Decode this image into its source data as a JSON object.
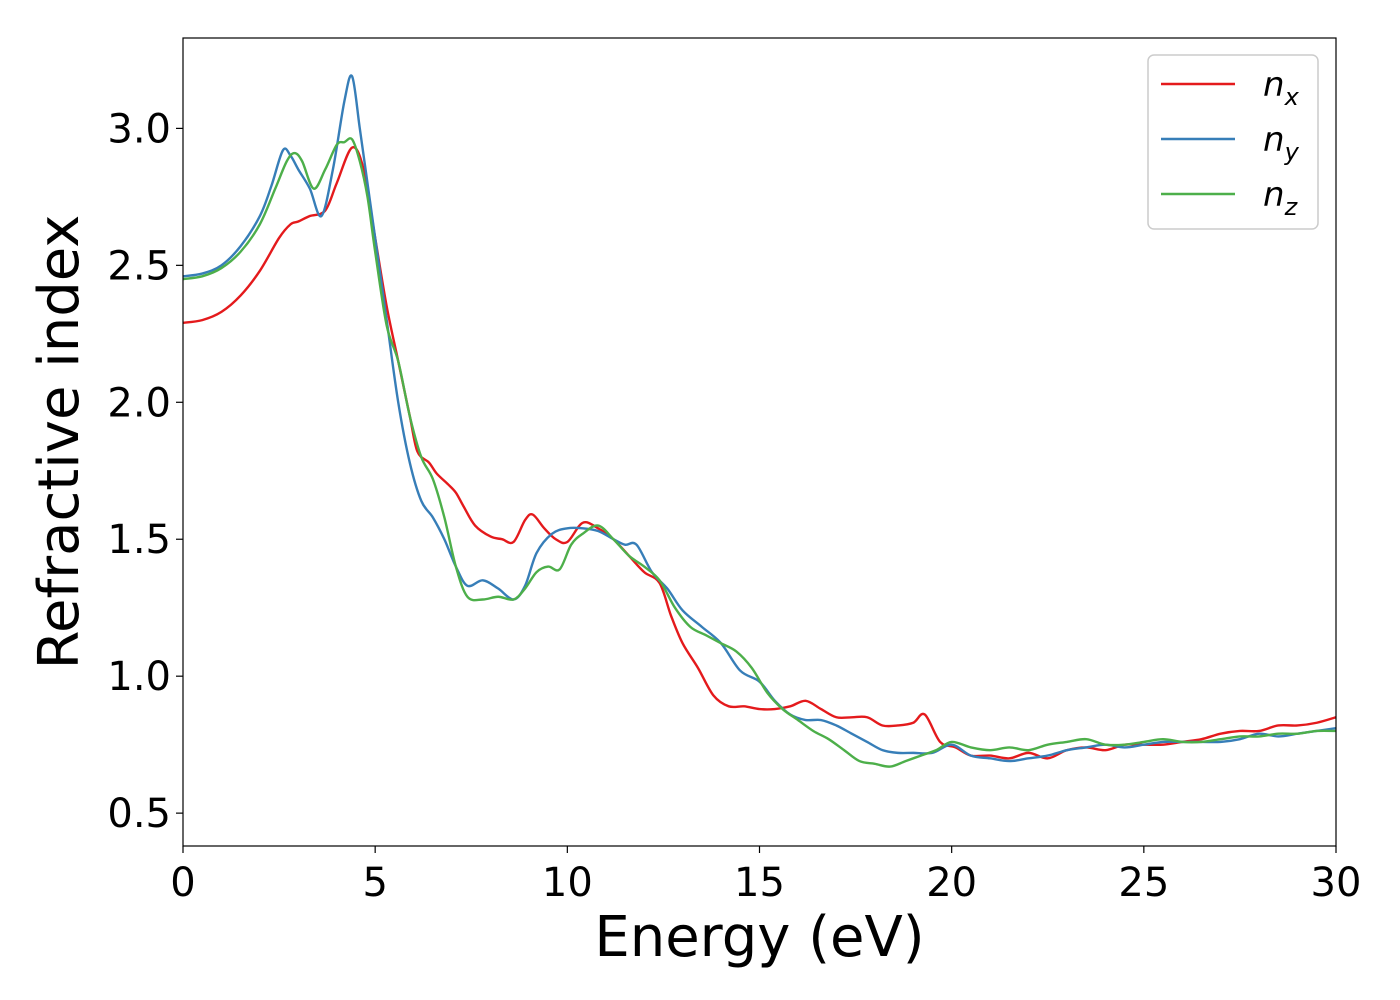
{
  "chart_data": {
    "type": "line",
    "xlabel": "Energy (eV)",
    "ylabel": "Refractive index",
    "xlim": [
      0,
      30
    ],
    "ylim": [
      0.38,
      3.33
    ],
    "xticks": [
      0,
      5,
      10,
      15,
      20,
      25,
      30
    ],
    "xtick_labels": [
      "0",
      "5",
      "10",
      "15",
      "20",
      "25",
      "30"
    ],
    "yticks": [
      0.5,
      1.0,
      1.5,
      2.0,
      2.5,
      3.0
    ],
    "ytick_labels": [
      "0.5",
      "1.0",
      "1.5",
      "2.0",
      "2.5",
      "3.0"
    ],
    "grid": false,
    "legend_position": "top-right",
    "series": [
      {
        "name": "n_x",
        "legend_base": "n",
        "legend_sub": "x",
        "color": "#e41a1c",
        "x": [
          0,
          0.5,
          1,
          1.5,
          2,
          2.5,
          2.8,
          3.0,
          3.3,
          3.7,
          4.0,
          4.4,
          4.7,
          5.0,
          5.3,
          5.6,
          5.9,
          6.1,
          6.4,
          6.6,
          6.9,
          7.1,
          7.3,
          7.6,
          8.0,
          8.3,
          8.6,
          8.9,
          9.1,
          9.4,
          9.7,
          10.0,
          10.4,
          10.8,
          11.2,
          11.6,
          12.0,
          12.4,
          12.7,
          13.0,
          13.4,
          13.8,
          14.2,
          14.6,
          15.0,
          15.4,
          15.8,
          16.2,
          16.6,
          17.0,
          17.4,
          17.8,
          18.2,
          18.6,
          19.0,
          19.3,
          19.7,
          20.1,
          20.5,
          21.0,
          21.5,
          22.0,
          22.5,
          23.0,
          23.5,
          24.0,
          24.5,
          25.0,
          25.5,
          26.0,
          26.5,
          27.0,
          27.5,
          28.0,
          28.5,
          29.0,
          29.5,
          30.0
        ],
        "y": [
          2.29,
          2.3,
          2.33,
          2.39,
          2.48,
          2.6,
          2.65,
          2.66,
          2.68,
          2.7,
          2.8,
          2.93,
          2.85,
          2.6,
          2.35,
          2.15,
          1.95,
          1.82,
          1.78,
          1.74,
          1.7,
          1.67,
          1.62,
          1.55,
          1.51,
          1.5,
          1.49,
          1.57,
          1.59,
          1.54,
          1.5,
          1.49,
          1.56,
          1.54,
          1.5,
          1.44,
          1.38,
          1.34,
          1.22,
          1.12,
          1.03,
          0.93,
          0.89,
          0.89,
          0.88,
          0.88,
          0.89,
          0.91,
          0.88,
          0.85,
          0.85,
          0.85,
          0.82,
          0.82,
          0.83,
          0.86,
          0.76,
          0.74,
          0.71,
          0.71,
          0.7,
          0.72,
          0.7,
          0.73,
          0.74,
          0.73,
          0.75,
          0.75,
          0.75,
          0.76,
          0.77,
          0.79,
          0.8,
          0.8,
          0.82,
          0.82,
          0.83,
          0.85
        ]
      },
      {
        "name": "n_y",
        "legend_base": "n",
        "legend_sub": "y",
        "color": "#377eb8",
        "x": [
          0,
          0.5,
          1,
          1.5,
          2,
          2.3,
          2.6,
          2.8,
          3.0,
          3.3,
          3.6,
          3.9,
          4.2,
          4.4,
          4.6,
          4.8,
          5.0,
          5.3,
          5.6,
          5.9,
          6.2,
          6.5,
          6.8,
          7.1,
          7.4,
          7.8,
          8.2,
          8.6,
          8.9,
          9.2,
          9.6,
          10.0,
          10.4,
          10.8,
          11.2,
          11.5,
          11.8,
          12.2,
          12.6,
          13.0,
          13.5,
          14.0,
          14.5,
          15.0,
          15.4,
          15.8,
          16.2,
          16.6,
          17.0,
          17.4,
          17.8,
          18.2,
          18.6,
          19.0,
          19.5,
          20.0,
          20.5,
          21.0,
          21.5,
          22.0,
          22.5,
          23.0,
          23.5,
          24.0,
          24.5,
          25.0,
          25.5,
          26.0,
          26.5,
          27.0,
          27.5,
          28.0,
          28.5,
          29.0,
          29.5,
          30.0
        ],
        "y": [
          2.46,
          2.47,
          2.5,
          2.57,
          2.68,
          2.79,
          2.92,
          2.9,
          2.85,
          2.78,
          2.68,
          2.85,
          3.1,
          3.19,
          3.0,
          2.8,
          2.6,
          2.3,
          2.0,
          1.78,
          1.64,
          1.58,
          1.5,
          1.4,
          1.33,
          1.35,
          1.32,
          1.28,
          1.33,
          1.45,
          1.52,
          1.54,
          1.54,
          1.53,
          1.5,
          1.48,
          1.48,
          1.38,
          1.32,
          1.24,
          1.18,
          1.12,
          1.02,
          0.98,
          0.91,
          0.86,
          0.84,
          0.84,
          0.82,
          0.79,
          0.76,
          0.73,
          0.72,
          0.72,
          0.72,
          0.75,
          0.71,
          0.7,
          0.69,
          0.7,
          0.71,
          0.73,
          0.74,
          0.75,
          0.74,
          0.75,
          0.76,
          0.76,
          0.76,
          0.76,
          0.77,
          0.79,
          0.78,
          0.79,
          0.8,
          0.81
        ]
      },
      {
        "name": "n_z",
        "legend_base": "n",
        "legend_sub": "z",
        "color": "#4daf4a",
        "x": [
          0,
          0.5,
          1,
          1.5,
          2,
          2.4,
          2.7,
          2.9,
          3.1,
          3.4,
          3.7,
          4.0,
          4.2,
          4.4,
          4.6,
          4.8,
          5.0,
          5.3,
          5.6,
          5.9,
          6.2,
          6.5,
          6.8,
          7.1,
          7.4,
          7.8,
          8.2,
          8.6,
          8.9,
          9.2,
          9.5,
          9.8,
          10.1,
          10.4,
          10.8,
          11.2,
          11.6,
          12.0,
          12.4,
          12.8,
          13.2,
          13.6,
          14.0,
          14.4,
          14.8,
          15.2,
          15.6,
          16.0,
          16.4,
          16.8,
          17.2,
          17.6,
          18.0,
          18.4,
          18.8,
          19.2,
          19.6,
          20.0,
          20.5,
          21.0,
          21.5,
          22.0,
          22.5,
          23.0,
          23.5,
          24.0,
          24.5,
          25.0,
          25.5,
          26.0,
          26.5,
          27.0,
          27.5,
          28.0,
          28.5,
          29.0,
          29.5,
          30.0
        ],
        "y": [
          2.45,
          2.46,
          2.49,
          2.55,
          2.65,
          2.78,
          2.88,
          2.91,
          2.88,
          2.78,
          2.85,
          2.94,
          2.95,
          2.96,
          2.88,
          2.75,
          2.55,
          2.28,
          2.15,
          1.95,
          1.8,
          1.72,
          1.58,
          1.4,
          1.29,
          1.28,
          1.29,
          1.28,
          1.32,
          1.38,
          1.4,
          1.39,
          1.48,
          1.52,
          1.55,
          1.5,
          1.44,
          1.4,
          1.35,
          1.25,
          1.18,
          1.15,
          1.12,
          1.09,
          1.03,
          0.94,
          0.88,
          0.84,
          0.8,
          0.77,
          0.73,
          0.69,
          0.68,
          0.67,
          0.69,
          0.71,
          0.73,
          0.76,
          0.74,
          0.73,
          0.74,
          0.73,
          0.75,
          0.76,
          0.77,
          0.75,
          0.75,
          0.76,
          0.77,
          0.76,
          0.76,
          0.77,
          0.78,
          0.78,
          0.79,
          0.79,
          0.8,
          0.8
        ]
      }
    ]
  }
}
